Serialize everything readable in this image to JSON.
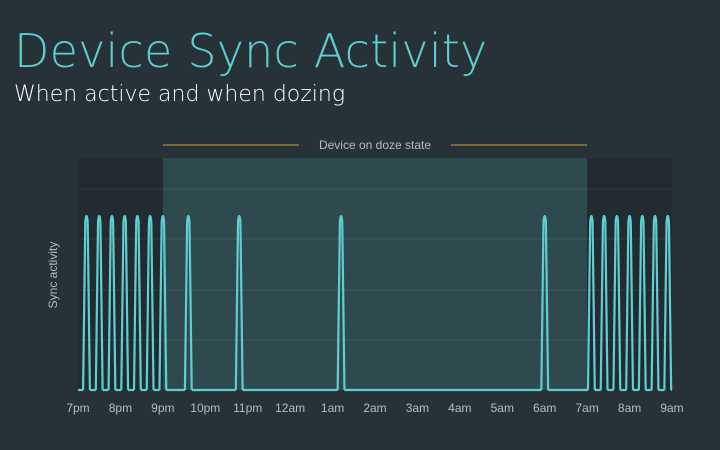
{
  "header": {
    "title": "Device Sync Activity",
    "subtitle": "When active and when dozing"
  },
  "chart_data": {
    "type": "line",
    "title": "Device Sync Activity",
    "subtitle": "When active and when dozing",
    "xlabel": "",
    "ylabel": "Sync activity",
    "categories": [
      "7pm",
      "8pm",
      "9pm",
      "10pm",
      "11pm",
      "12am",
      "1am",
      "2am",
      "3am",
      "4am",
      "5am",
      "6am",
      "7am",
      "8am",
      "9am"
    ],
    "x_range_hours": [
      0,
      14
    ],
    "ylim": [
      0,
      1
    ],
    "doze_region": {
      "label": "Device on doze state",
      "start_hour": 2,
      "end_hour": 12
    },
    "series": [
      {
        "peak_hours": [
          0.2,
          0.5,
          0.8,
          1.1,
          1.4,
          1.7,
          2.0,
          2.6,
          3.8,
          6.2,
          11.0,
          12.1,
          12.4,
          12.7,
          13.0,
          13.3,
          13.6,
          13.9
        ],
        "peak_value": 1
      }
    ],
    "grid": true,
    "legend": "none",
    "colors": {
      "line": "#5ecfd0",
      "doze_fill": "#2f4a4f",
      "active_fill": "#212b30",
      "doze_marker": "#c9a227",
      "background": "#263238"
    }
  }
}
